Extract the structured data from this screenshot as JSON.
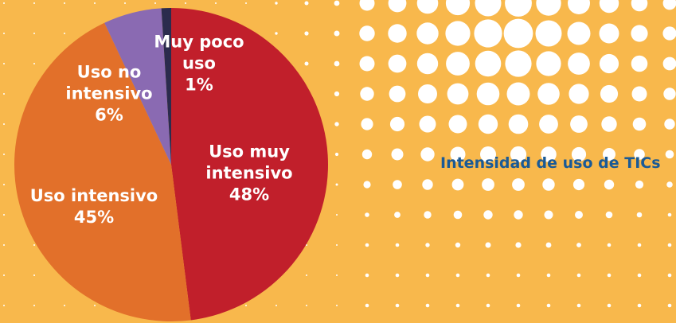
{
  "chart_data": {
    "type": "pie",
    "title": "Intensidad de uso de TICs",
    "categories": [
      "Uso muy intensivo",
      "Uso intensivo",
      "Uso no intensivo",
      "Muy poco uso"
    ],
    "values": [
      48,
      45,
      6,
      1
    ],
    "value_labels": [
      "48%",
      "45%",
      "6%",
      "1%"
    ],
    "colors": [
      "#c11f2b",
      "#e2702a",
      "#8a6ab2",
      "#2b2b4d"
    ]
  }
}
